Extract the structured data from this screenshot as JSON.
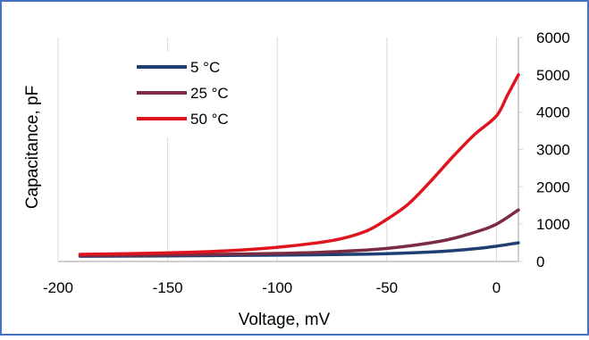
{
  "chart_data": {
    "type": "line",
    "xlabel": "Voltage, mV",
    "ylabel": "Capacitance, pF",
    "xlim": [
      -200,
      10
    ],
    "ylim": [
      0,
      6000
    ],
    "x_ticks": [
      "-200",
      "-150",
      "-100",
      "-50",
      "0"
    ],
    "y_ticks": [
      "0",
      "1000",
      "2000",
      "3000",
      "4000",
      "5000",
      "6000"
    ],
    "y_axis_side": "right",
    "grid": "vertical",
    "legend": "top-left",
    "series": [
      {
        "name": "5 °C",
        "color": "#1f3f73",
        "points": [
          [
            -190,
            140
          ],
          [
            -150,
            150
          ],
          [
            -100,
            170
          ],
          [
            -75,
            185
          ],
          [
            -50,
            210
          ],
          [
            -25,
            270
          ],
          [
            -10,
            340
          ],
          [
            0,
            410
          ],
          [
            10,
            500
          ]
        ]
      },
      {
        "name": "25 °C",
        "color": "#7b2c43",
        "points": [
          [
            -190,
            160
          ],
          [
            -150,
            175
          ],
          [
            -100,
            215
          ],
          [
            -75,
            260
          ],
          [
            -50,
            350
          ],
          [
            -25,
            550
          ],
          [
            -10,
            780
          ],
          [
            0,
            1000
          ],
          [
            10,
            1380
          ]
        ]
      },
      {
        "name": "50 °C",
        "color": "#e0141e",
        "points": [
          [
            -190,
            190
          ],
          [
            -150,
            230
          ],
          [
            -125,
            280
          ],
          [
            -100,
            380
          ],
          [
            -75,
            560
          ],
          [
            -60,
            800
          ],
          [
            -50,
            1130
          ],
          [
            -40,
            1550
          ],
          [
            -30,
            2150
          ],
          [
            -20,
            2800
          ],
          [
            -10,
            3400
          ],
          [
            0,
            3900
          ],
          [
            5,
            4450
          ],
          [
            10,
            5000
          ]
        ]
      }
    ]
  }
}
